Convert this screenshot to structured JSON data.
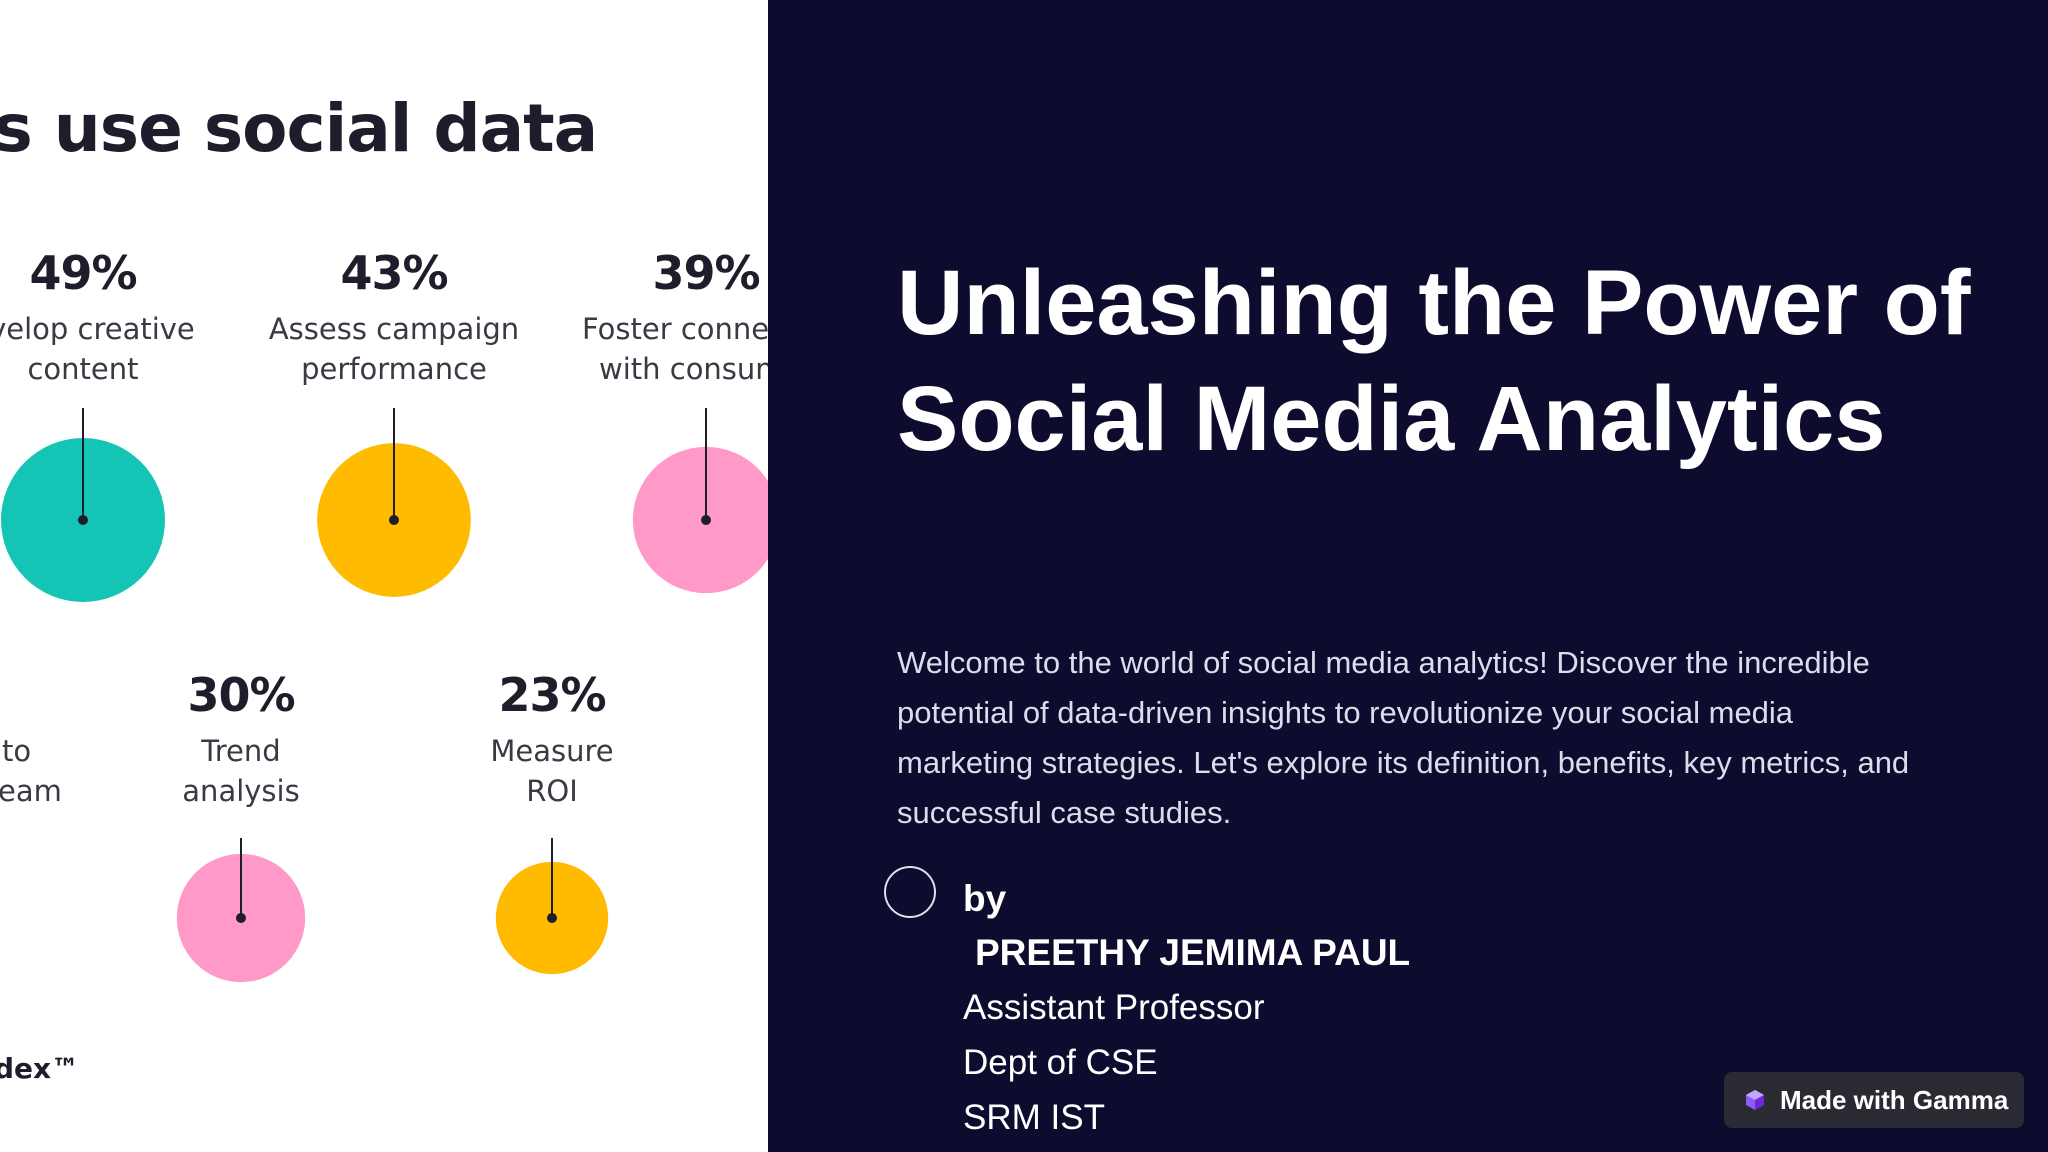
{
  "infographic": {
    "title": "rs use social data",
    "stats_row1": [
      {
        "percent": "49%",
        "lines": [
          "evelop creative",
          "content"
        ],
        "color": "#14c4b4",
        "value": 49
      },
      {
        "percent": "43%",
        "lines": [
          "Assess campaign",
          "performance"
        ],
        "color": "#ffbb00",
        "value": 43
      },
      {
        "percent": "39%",
        "lines": [
          "Foster conne",
          "with consum"
        ],
        "color": "#ff99c8",
        "value": 39
      }
    ],
    "stats_row2": [
      {
        "percent": "",
        "lines": [
          "to",
          "eam"
        ],
        "color": "",
        "value": null
      },
      {
        "percent": "30%",
        "lines": [
          "Trend",
          "analysis"
        ],
        "color": "#ff99c8",
        "value": 30
      },
      {
        "percent": "23%",
        "lines": [
          "Measure",
          "ROI"
        ],
        "color": "#ffbb00",
        "value": 23
      }
    ],
    "source": "dex™"
  },
  "slide": {
    "title": "Unleashing the Power of Social Media Analytics",
    "intro": "Welcome to the world of social media analytics! Discover the incredible potential of data-driven insights to revolutionize your social media marketing strategies. Let's explore its definition, benefits, key metrics, and successful case studies.",
    "by_label": "by",
    "author_name": "PREETHY JEMIMA PAUL",
    "author_role": "Assistant Professor",
    "author_dept": "Dept of CSE",
    "author_org": "SRM IST"
  },
  "badge": {
    "label": "Made with Gamma",
    "icon": "gamma-logo-icon"
  },
  "colors": {
    "background_dark": "#0e0c2e",
    "teal": "#14c4b4",
    "yellow": "#ffbb00",
    "pink": "#ff99c8"
  }
}
